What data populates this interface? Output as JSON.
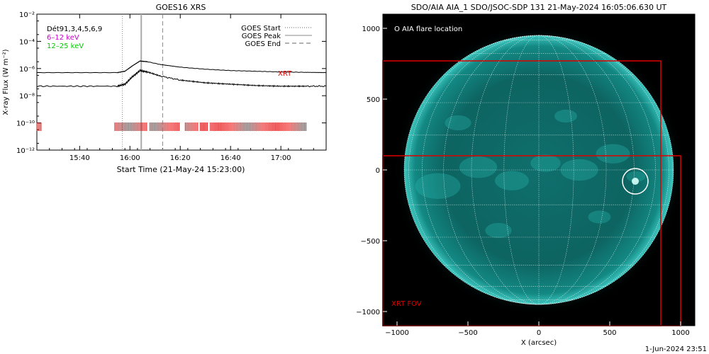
{
  "chart_data": [
    {
      "type": "line",
      "title": "GOES16 XRS",
      "xlabel": "Start Time (21-May-24 15:23:00)",
      "ylabel": "X-ray Flux (W m⁻²)",
      "ylog": true,
      "ylim": [
        1e-12,
        0.01
      ],
      "xlim_minutes_after_1520": [
        3,
        118
      ],
      "x_tick_labels": [
        "15:40",
        "16:00",
        "16:20",
        "16:40",
        "17:00"
      ],
      "x_tick_minutes": [
        20,
        40,
        60,
        80,
        100
      ],
      "y_tick_labels": [
        "10⁻¹²",
        "10⁻¹⁰",
        "10⁻⁸",
        "10⁻⁶",
        "10⁻⁴",
        "10⁻²"
      ],
      "y_tick_exponents": [
        -12,
        -10,
        -8,
        -6,
        -4,
        -2
      ],
      "legend_left": [
        {
          "text": "Dét91,3,4,5,6,9",
          "color": "#000000"
        },
        {
          "text": "6–12 keV",
          "color": "#cc00cc"
        },
        {
          "text": "12–25 keV",
          "color": "#00cc00"
        }
      ],
      "legend_right": [
        {
          "text": "GOES Start",
          "style": "dotted"
        },
        {
          "text": "GOES Peak",
          "style": "solid"
        },
        {
          "text": "GOES End",
          "style": "dashed"
        }
      ],
      "annotation": {
        "text": "XRT",
        "color": "#dd0000"
      },
      "event_lines_minutes": {
        "start": 37,
        "peak": 44.5,
        "end": 53
      },
      "series": [
        {
          "role": "upper",
          "x": [
            3,
            35,
            38,
            41,
            44,
            47,
            52,
            60,
            70,
            80,
            90,
            100,
            110,
            118
          ],
          "y_log": [
            -6.3,
            -6.3,
            -6.2,
            -5.8,
            -5.45,
            -5.5,
            -5.7,
            -5.9,
            -6.05,
            -6.15,
            -6.2,
            -6.25,
            -6.28,
            -6.3
          ]
        },
        {
          "role": "lower",
          "x": [
            3,
            35,
            38,
            41,
            44,
            47,
            52,
            60,
            70,
            80,
            90,
            100,
            110,
            118
          ],
          "y_log": [
            -7.3,
            -7.3,
            -7.15,
            -6.6,
            -6.15,
            -6.25,
            -6.55,
            -6.85,
            -7.05,
            -7.15,
            -7.25,
            -7.3,
            -7.3,
            -7.3
          ]
        }
      ],
      "xrt_obs_minutes": [
        [
          3,
          5
        ],
        [
          34,
          47
        ],
        [
          48,
          60
        ],
        [
          62,
          67
        ],
        [
          68,
          71
        ],
        [
          72,
          110
        ]
      ]
    },
    {
      "type": "image",
      "title": "SDO/AIA AIA_1 SDO/JSOC-SDP 131 21-May-2024 16:05:06.630 UT",
      "xlabel": "X (arcsec)",
      "ylabel": "",
      "xlim": [
        -1100,
        1100
      ],
      "ylim": [
        -1100,
        1100
      ],
      "x_ticks": [
        -1000,
        -500,
        0,
        500,
        1000
      ],
      "y_ticks": [
        -1000,
        -500,
        0,
        500,
        1000
      ],
      "x_tick_labels": [
        "−1000",
        "−500",
        "0",
        "500",
        "1000"
      ],
      "y_tick_labels": [
        "−1000",
        "−500",
        "0",
        "500",
        "1000"
      ],
      "legend": {
        "text": "O AIA flare location"
      },
      "fov_label": "XRT FOV",
      "flare_location_arcsec": [
        680,
        -80
      ],
      "solar_radius_arcsec": 950,
      "fov_boxes_arcsec": [
        [
          -1100,
          -1100,
          860,
          770
        ],
        [
          -1100,
          -1100,
          1000,
          100
        ]
      ],
      "fov_color": "#dd0000",
      "disk_color": "#0fa5a0"
    }
  ],
  "footer": {
    "timestamp": "1-Jun-2024 23:51"
  }
}
